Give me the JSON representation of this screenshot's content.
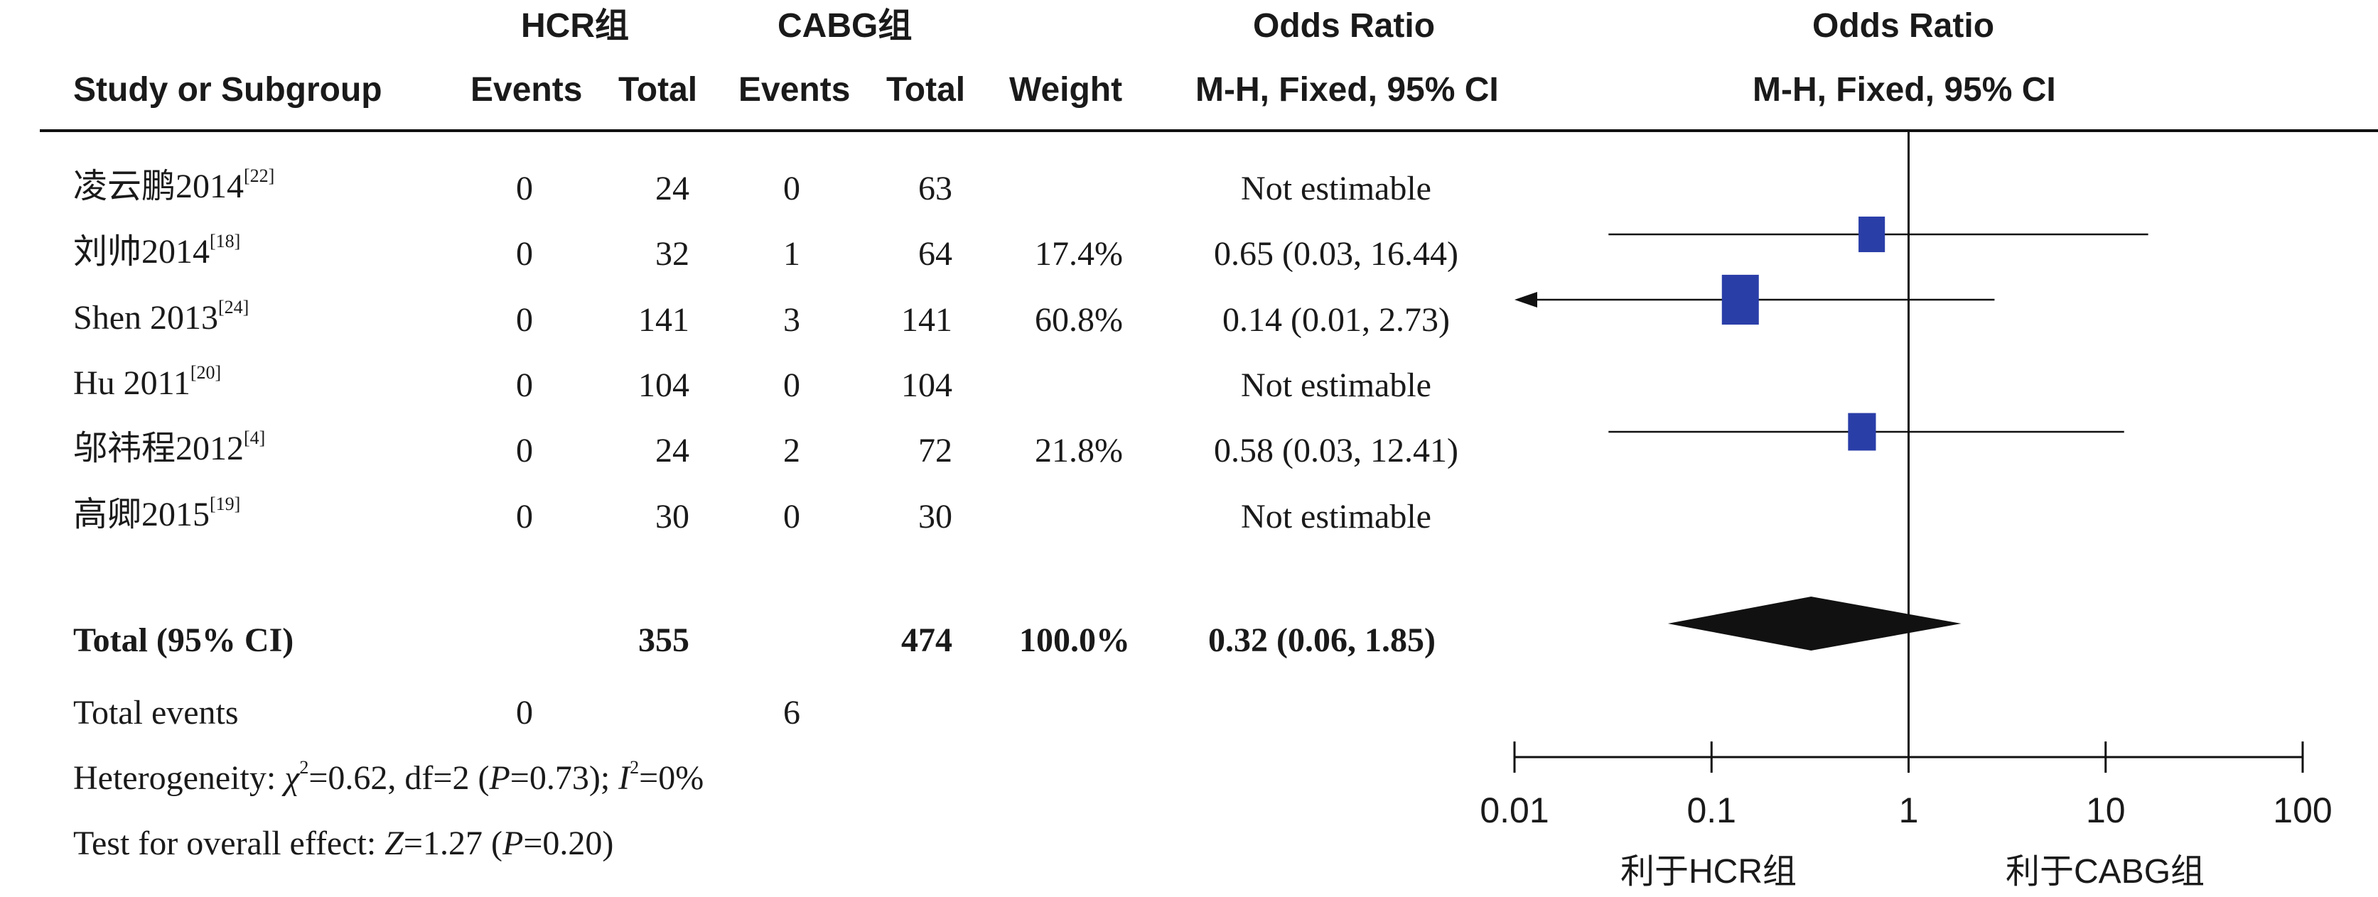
{
  "header": {
    "group1": "HCR组",
    "group2": "CABG组",
    "or_title_left": "Odds Ratio",
    "or_title_right": "Odds Ratio",
    "col_study": "Study or Subgroup",
    "col_events1": "Events",
    "col_total1": "Total",
    "col_events2": "Events",
    "col_total2": "Total",
    "col_weight": "Weight",
    "col_method_left": "M-H, Fixed, 95% CI",
    "col_method_right": "M-H, Fixed, 95% CI"
  },
  "rows": [
    {
      "study": "凌云鹏2014",
      "ref": "[22]",
      "e1": "0",
      "t1": "24",
      "e2": "0",
      "t2": "63",
      "weight": "",
      "ci": "Not estimable"
    },
    {
      "study": "刘帅2014",
      "ref": "[18]",
      "e1": "0",
      "t1": "32",
      "e2": "1",
      "t2": "64",
      "weight": "17.4%",
      "ci": "0.65 (0.03, 16.44)"
    },
    {
      "study": "Shen 2013",
      "ref": "[24]",
      "e1": "0",
      "t1": "141",
      "e2": "3",
      "t2": "141",
      "weight": "60.8%",
      "ci": "0.14 (0.01, 2.73)"
    },
    {
      "study": "Hu 2011",
      "ref": "[20]",
      "e1": "0",
      "t1": "104",
      "e2": "0",
      "t2": "104",
      "weight": "",
      "ci": "Not estimable"
    },
    {
      "study": "邬祎程2012",
      "ref": "[4]",
      "e1": "0",
      "t1": "24",
      "e2": "2",
      "t2": "72",
      "weight": "21.8%",
      "ci": "0.58 (0.03, 12.41)"
    },
    {
      "study": "高卿2015",
      "ref": "[19]",
      "e1": "0",
      "t1": "30",
      "e2": "0",
      "t2": "30",
      "weight": "",
      "ci": "Not estimable"
    }
  ],
  "total": {
    "label": "Total (95% CI)",
    "t1": "355",
    "t2": "474",
    "weight": "100.0%",
    "ci": "0.32 (0.06, 1.85)"
  },
  "total_events": {
    "label": "Total events",
    "e1": "0",
    "e2": "6"
  },
  "heterogeneity": {
    "prefix": "Heterogeneity: ",
    "chi": "χ",
    "chi_rest": "=0.62, df=2 (",
    "p": "P",
    "p_rest": "=0.73); ",
    "i": "I",
    "i_rest": "=0%"
  },
  "overall_effect": {
    "prefix": "Test for overall effect: ",
    "z": "Z",
    "z_rest": "=1.27 (",
    "p": "P",
    "p_rest": "=0.20)"
  },
  "favours": {
    "left": "利于HCR组",
    "right": "利于CABG组"
  },
  "colors": {
    "square": "#2a3ea8",
    "diamond": "#111111",
    "line": "#111111"
  },
  "chart_data": {
    "type": "forest",
    "scale": "log",
    "xlim": [
      0.01,
      100
    ],
    "ticks": [
      0.01,
      0.1,
      1,
      10,
      100
    ],
    "tick_labels": [
      "0.01",
      "0.1",
      "1",
      "10",
      "100"
    ],
    "reference_line": 1,
    "studies": [
      {
        "name": "刘帅2014",
        "or": 0.65,
        "lower": 0.03,
        "upper": 16.44,
        "weight": 17.4
      },
      {
        "name": "Shen 2013",
        "or": 0.14,
        "lower": 0.01,
        "upper": 2.73,
        "weight": 60.8
      },
      {
        "name": "邬祎程2012",
        "or": 0.58,
        "lower": 0.03,
        "upper": 12.41,
        "weight": 21.8
      }
    ],
    "pooled": {
      "or": 0.32,
      "lower": 0.06,
      "upper": 1.85
    }
  }
}
